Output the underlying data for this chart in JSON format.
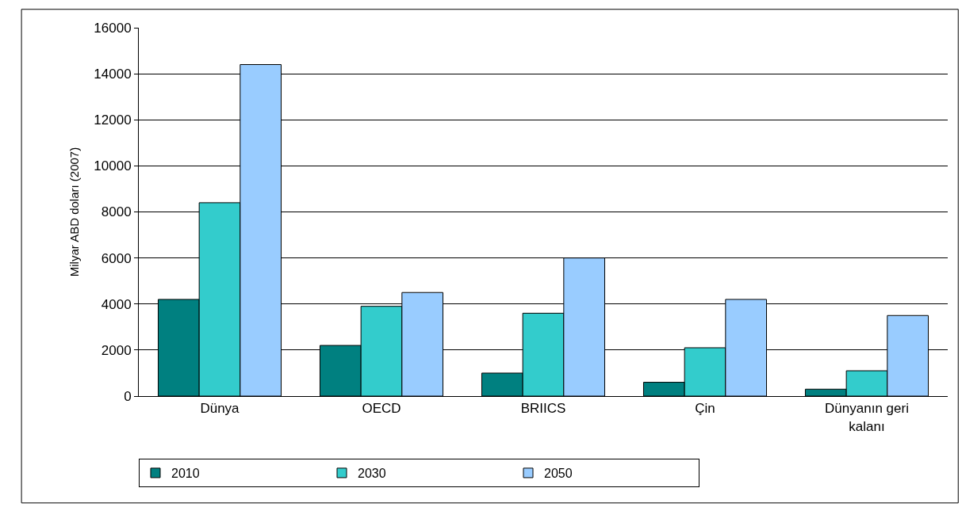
{
  "chart_data": {
    "type": "bar",
    "ylabel": "Milyar ABD doları (2007)",
    "categories": [
      "Dünya",
      "OECD",
      "BRIICS",
      "Çin",
      "Dünyanın geri\nkalanı"
    ],
    "series": [
      {
        "name": "2010",
        "color": "#008080",
        "values": [
          4200,
          2200,
          1000,
          600,
          300
        ]
      },
      {
        "name": "2030",
        "color": "#33cccc",
        "values": [
          8400,
          3900,
          3600,
          2100,
          1100
        ]
      },
      {
        "name": "2050",
        "color": "#99ccff",
        "values": [
          14400,
          4500,
          6000,
          4200,
          3500
        ]
      }
    ],
    "ylim": [
      0,
      16000
    ],
    "yticks": [
      0,
      2000,
      4000,
      6000,
      8000,
      10000,
      12000,
      14000,
      16000
    ],
    "grid": "y",
    "legend": "bottom left"
  }
}
